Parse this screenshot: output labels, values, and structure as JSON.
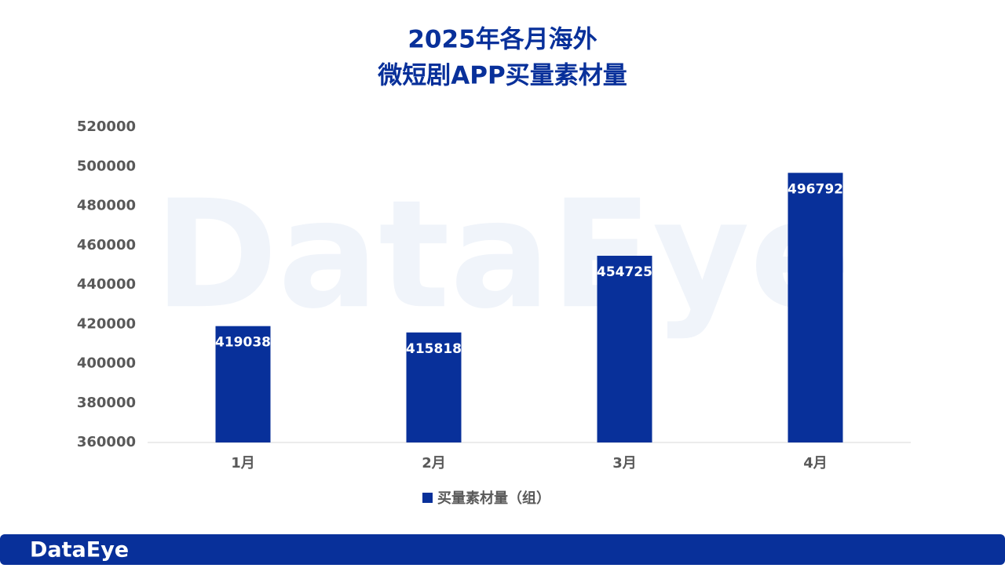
{
  "chart_data": {
    "type": "bar",
    "title_lines": [
      "2025年各月海外",
      "微短剧APP买量素材量"
    ],
    "categories": [
      "1月",
      "2月",
      "3月",
      "4月"
    ],
    "series": [
      {
        "name": "买量素材量（组）",
        "color": "#08309a",
        "values": [
          419038,
          415818,
          454725,
          496792
        ]
      }
    ],
    "ylim": [
      360000,
      520000
    ],
    "yticks": [
      360000,
      380000,
      400000,
      420000,
      440000,
      460000,
      480000,
      500000,
      520000
    ],
    "grid": false,
    "legend": "bottom"
  },
  "watermark": "DataEye",
  "footer": {
    "brand": "DataEye"
  }
}
